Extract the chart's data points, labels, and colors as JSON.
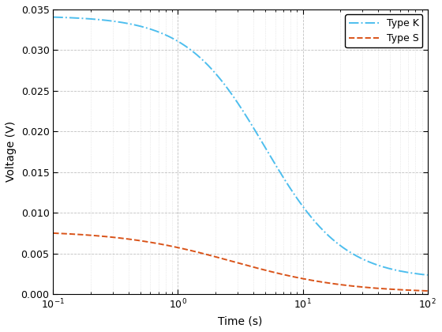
{
  "xlabel": "Time (s)",
  "ylabel": "Voltage (V)",
  "xlim": [
    0.1,
    100
  ],
  "ylim": [
    0,
    0.035
  ],
  "yticks": [
    0,
    0.005,
    0.01,
    0.015,
    0.02,
    0.025,
    0.03,
    0.035
  ],
  "legend": [
    "Type K",
    "Type S"
  ],
  "type_k": {
    "color": "#4DBEEE",
    "linestyle": "-.",
    "linewidth": 1.4,
    "V0": 0.0342,
    "Vinf": 0.00185,
    "tc": 5.0,
    "k": 3.2
  },
  "type_s": {
    "color": "#D95319",
    "linestyle": "--",
    "linewidth": 1.4,
    "V0": 0.0078,
    "Vinf": 0.00015,
    "tc": 2.8,
    "k": 2.2
  },
  "grid_major_color": "#c0c0c0",
  "grid_minor_color": "#d8d8d8",
  "background_color": "#ffffff",
  "fig_width": 5.6,
  "fig_height": 4.2,
  "dpi": 100
}
